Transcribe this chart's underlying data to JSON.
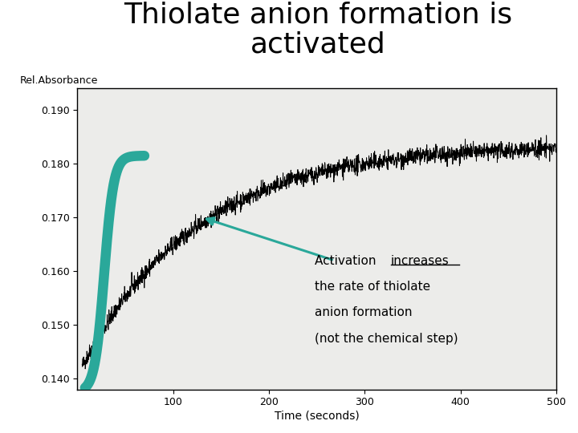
{
  "title_line1": "Thiolate anion formation is",
  "title_line2": "activated",
  "ylabel": "Rel.Absorbance",
  "xlabel": "Time (seconds)",
  "xlim": [
    0,
    500
  ],
  "ylim": [
    0.138,
    0.194
  ],
  "yticks": [
    0.14,
    0.15,
    0.16,
    0.17,
    0.18,
    0.19
  ],
  "xticks": [
    100,
    200,
    300,
    400,
    500
  ],
  "curve_color": "#000000",
  "teal_color": "#2aa89a",
  "annotation_line1_normal": "Activation ",
  "annotation_line1_underline": "increases",
  "annotation_line2": "the rate of thiolate",
  "annotation_line3": "anion formation",
  "annotation_line4": "(not the chemical step)",
  "bg_color": "#ffffff",
  "noise_seed": 42,
  "title_fontsize": 26,
  "axis_fontsize": 10
}
